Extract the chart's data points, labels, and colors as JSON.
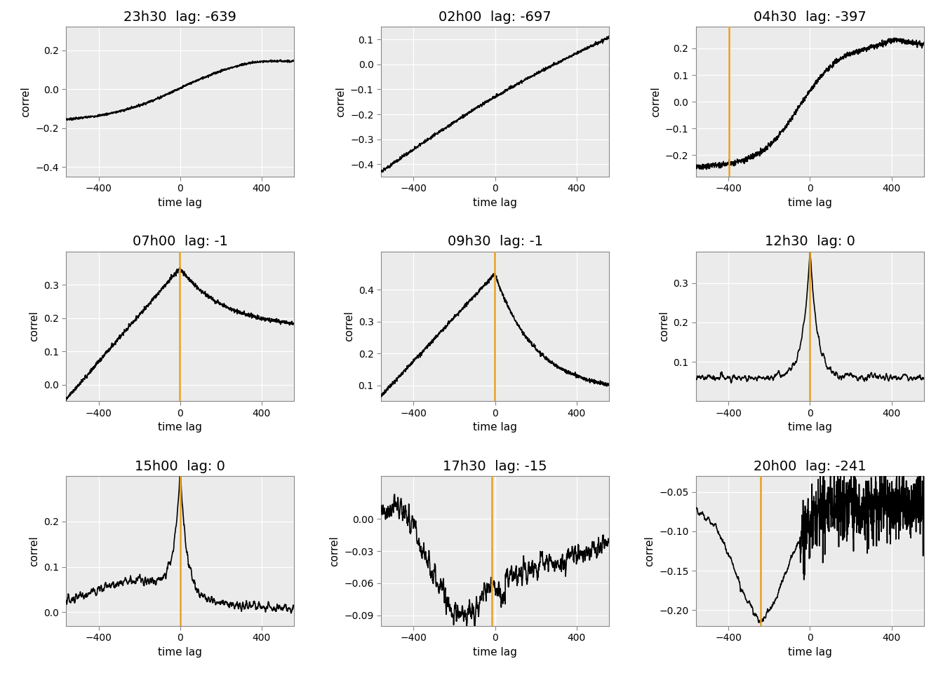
{
  "subplots": [
    {
      "title": "23h30  lag: -639",
      "lag": -639,
      "ylim": [
        -0.45,
        0.32
      ],
      "yticks": [
        -0.4,
        -0.2,
        0.0,
        0.2
      ],
      "xlim": [
        -560,
        560
      ]
    },
    {
      "title": "02h00  lag: -697",
      "lag": -697,
      "ylim": [
        -0.45,
        0.15
      ],
      "yticks": [
        -0.4,
        -0.3,
        -0.2,
        -0.1,
        0.0,
        0.1
      ],
      "xlim": [
        -560,
        560
      ]
    },
    {
      "title": "04h30  lag: -397",
      "lag": -397,
      "ylim": [
        -0.28,
        0.28
      ],
      "yticks": [
        -0.2,
        -0.1,
        0.0,
        0.1,
        0.2
      ],
      "xlim": [
        -560,
        560
      ]
    },
    {
      "title": "07h00  lag: -1",
      "lag": -1,
      "ylim": [
        -0.05,
        0.4
      ],
      "yticks": [
        0.0,
        0.1,
        0.2,
        0.3
      ],
      "xlim": [
        -560,
        560
      ]
    },
    {
      "title": "09h30  lag: -1",
      "lag": -1,
      "ylim": [
        0.05,
        0.52
      ],
      "yticks": [
        0.1,
        0.2,
        0.3,
        0.4
      ],
      "xlim": [
        -560,
        560
      ]
    },
    {
      "title": "12h30  lag: 0",
      "lag": 0,
      "ylim": [
        0.0,
        0.38
      ],
      "yticks": [
        0.1,
        0.2,
        0.3
      ],
      "xlim": [
        -560,
        560
      ]
    },
    {
      "title": "15h00  lag: 0",
      "lag": 0,
      "ylim": [
        -0.03,
        0.3
      ],
      "yticks": [
        0.0,
        0.1,
        0.2
      ],
      "xlim": [
        -560,
        560
      ]
    },
    {
      "title": "17h30  lag: -15",
      "lag": -15,
      "ylim": [
        -0.1,
        0.04
      ],
      "yticks": [
        -0.09,
        -0.06,
        -0.03,
        0.0
      ],
      "xlim": [
        -560,
        560
      ]
    },
    {
      "title": "20h00  lag: -241",
      "lag": -241,
      "ylim": [
        -0.22,
        -0.03
      ],
      "yticks": [
        -0.2,
        -0.15,
        -0.1,
        -0.05
      ],
      "xlim": [
        -560,
        560
      ]
    }
  ],
  "line_color": "#000000",
  "vline_color": "#E8A020",
  "background_color": "#EBEBEB",
  "grid_color": "#FFFFFF",
  "xlabel": "time lag",
  "ylabel": "correl",
  "title_fontsize": 14,
  "label_fontsize": 11,
  "tick_fontsize": 10,
  "xticks": [
    -400,
    0,
    400
  ]
}
